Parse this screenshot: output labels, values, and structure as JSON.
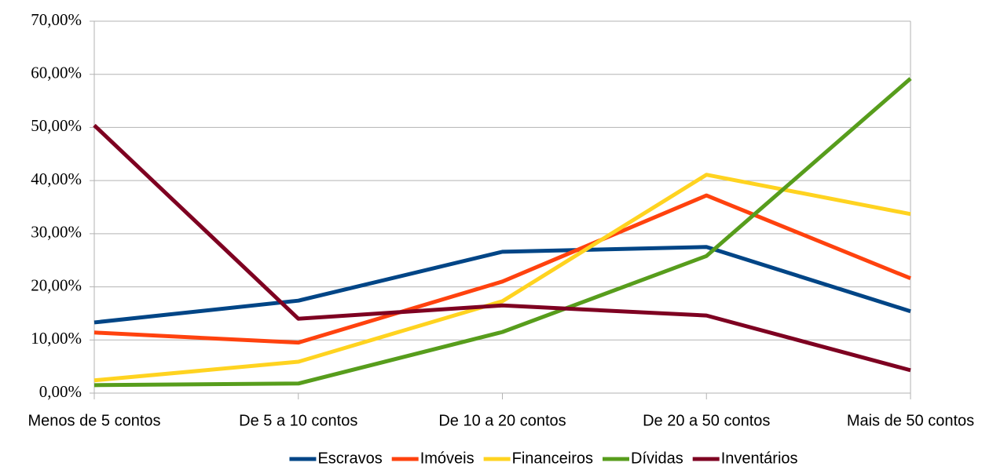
{
  "chart_data": {
    "type": "line",
    "categories": [
      "Menos de 5 contos",
      "De 5 a 10 contos",
      "De 10 a 20 contos",
      "De 20 a 50 contos",
      "Mais de 50 contos"
    ],
    "series": [
      {
        "name": "Escravos",
        "color": "#004586",
        "values": [
          13.3,
          17.4,
          26.6,
          27.5,
          15.4
        ]
      },
      {
        "name": "Imóveis",
        "color": "#ff420e",
        "values": [
          11.4,
          9.5,
          21.0,
          37.2,
          21.6
        ]
      },
      {
        "name": "Financeiros",
        "color": "#ffd320",
        "values": [
          2.4,
          5.9,
          17.3,
          41.1,
          33.7
        ]
      },
      {
        "name": "Dívidas",
        "color": "#579d1c",
        "values": [
          1.5,
          1.8,
          11.5,
          25.8,
          59.2
        ]
      },
      {
        "name": "Inventários",
        "color": "#7e0021",
        "values": [
          50.4,
          14.0,
          16.5,
          14.6,
          4.3
        ]
      }
    ],
    "ylim": [
      0,
      70
    ],
    "yticks": [
      {
        "value": 0,
        "label": "0,00%"
      },
      {
        "value": 10,
        "label": "10,00%"
      },
      {
        "value": 20,
        "label": "20,00%"
      },
      {
        "value": 30,
        "label": "30,00%"
      },
      {
        "value": 40,
        "label": "40,00%"
      },
      {
        "value": 50,
        "label": "50,00%"
      },
      {
        "value": 60,
        "label": "60,00%"
      },
      {
        "value": 70,
        "label": "70,00%"
      }
    ],
    "grid": true,
    "legend": "bottom"
  }
}
